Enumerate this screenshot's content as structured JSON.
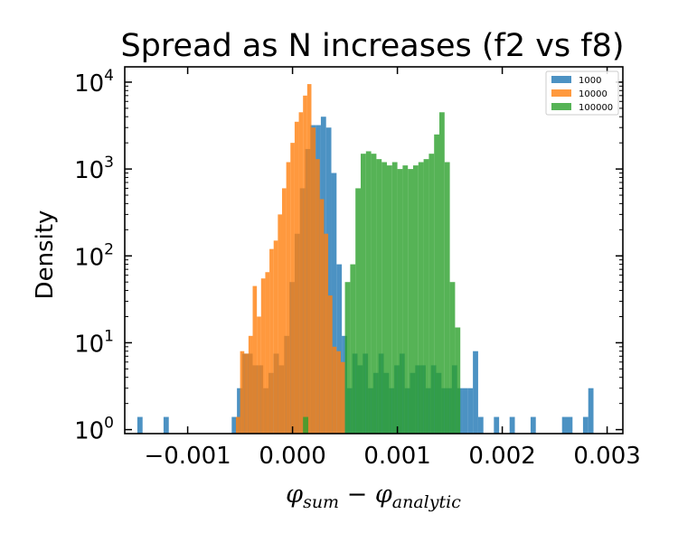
{
  "chart_data": {
    "type": "histogram",
    "title": "Spread as N increases (f2 vs f8)",
    "xlabel": {
      "base1": "φ",
      "sub1": "sum",
      "minus": " − ",
      "base2": "φ",
      "sub2": "analytic"
    },
    "ylabel": "Density",
    "yscale": "log",
    "xlim": [
      -0.0016,
      0.00315
    ],
    "ylim": [
      0.9,
      15000
    ],
    "xticks": [
      {
        "value": -0.001,
        "label": "−0.001"
      },
      {
        "value": 0.0,
        "label": "0.000"
      },
      {
        "value": 0.001,
        "label": "0.001"
      },
      {
        "value": 0.002,
        "label": "0.002"
      },
      {
        "value": 0.003,
        "label": "0.003"
      }
    ],
    "yticks": [
      {
        "value": 1,
        "base": "10",
        "exp": "0"
      },
      {
        "value": 10,
        "base": "10",
        "exp": "1"
      },
      {
        "value": 100,
        "base": "10",
        "exp": "2"
      },
      {
        "value": 1000,
        "base": "10",
        "exp": "3"
      },
      {
        "value": 10000,
        "base": "10",
        "exp": "4"
      }
    ],
    "legend_position": "top-right",
    "series": [
      {
        "name": "1000",
        "color": "#1f77b4",
        "bins": [
          [
            -0.00148,
            -0.00143,
            1.4
          ],
          [
            -0.00123,
            -0.00118,
            1.4
          ],
          [
            -0.00058,
            -0.00053,
            1.4
          ],
          [
            -0.00053,
            -0.00048,
            3.0
          ],
          [
            -0.00048,
            -0.00043,
            7.5
          ],
          [
            -0.00043,
            -0.00038,
            7.5
          ],
          [
            -0.00038,
            -0.00033,
            5.5
          ],
          [
            -0.00033,
            -0.00028,
            5.5
          ],
          [
            -0.00028,
            -0.00023,
            3.0
          ],
          [
            -0.00023,
            -0.00018,
            4.5
          ],
          [
            -0.00018,
            -0.00013,
            7.5
          ],
          [
            -0.00013,
            -8e-05,
            5.5
          ],
          [
            -8e-05,
            -3e-05,
            12
          ],
          [
            -3e-05,
            2e-05,
            50
          ],
          [
            2e-05,
            7e-05,
            180
          ],
          [
            7e-05,
            0.00012,
            600
          ],
          [
            0.00012,
            0.00017,
            1700
          ],
          [
            0.00017,
            0.00022,
            3200
          ],
          [
            0.00022,
            0.00027,
            3200
          ],
          [
            0.00027,
            0.00032,
            4000
          ],
          [
            0.00032,
            0.00037,
            3000
          ],
          [
            0.00037,
            0.00042,
            900
          ],
          [
            0.00042,
            0.00047,
            80
          ],
          [
            0.00047,
            0.00052,
            12
          ],
          [
            0.00052,
            0.00057,
            3.0
          ],
          [
            0.00057,
            0.00062,
            7.5
          ],
          [
            0.00062,
            0.00067,
            5.5
          ],
          [
            0.00067,
            0.00072,
            7.5
          ],
          [
            0.00072,
            0.00077,
            3.0
          ],
          [
            0.00077,
            0.00082,
            4.5
          ],
          [
            0.00082,
            0.00087,
            7.5
          ],
          [
            0.00087,
            0.00092,
            4.5
          ],
          [
            0.00092,
            0.00097,
            3.0
          ],
          [
            0.00097,
            0.00102,
            5.5
          ],
          [
            0.00102,
            0.00107,
            7.5
          ],
          [
            0.00107,
            0.00112,
            3.0
          ],
          [
            0.00112,
            0.00117,
            4.5
          ],
          [
            0.00117,
            0.00122,
            5.5
          ],
          [
            0.00122,
            0.00127,
            5.5
          ],
          [
            0.00127,
            0.00132,
            3.0
          ],
          [
            0.00132,
            0.00137,
            5.5
          ],
          [
            0.00137,
            0.00142,
            4.5
          ],
          [
            0.00142,
            0.00147,
            3.0
          ],
          [
            0.00147,
            0.00152,
            3.0
          ],
          [
            0.00152,
            0.00157,
            5.5
          ],
          [
            0.00157,
            0.00162,
            3.0
          ],
          [
            0.00162,
            0.00167,
            3.0
          ],
          [
            0.00167,
            0.00172,
            3.0
          ],
          [
            0.00172,
            0.00177,
            8.0
          ],
          [
            0.00177,
            0.00182,
            1.4
          ],
          [
            0.00192,
            0.00197,
            1.4
          ],
          [
            0.00207,
            0.00212,
            1.4
          ],
          [
            0.00227,
            0.00232,
            1.4
          ],
          [
            0.00257,
            0.00267,
            1.4
          ],
          [
            0.00277,
            0.00282,
            1.4
          ],
          [
            0.00282,
            0.00287,
            3.0
          ]
        ]
      },
      {
        "name": "10000",
        "color": "#ff7f0e",
        "bins": [
          [
            -0.00054,
            -0.0005,
            1.4
          ],
          [
            -0.0005,
            -0.00046,
            8.0
          ],
          [
            -0.00046,
            -0.00042,
            7.5
          ],
          [
            -0.00042,
            -0.00038,
            12
          ],
          [
            -0.00038,
            -0.00034,
            45
          ],
          [
            -0.00034,
            -0.0003,
            20
          ],
          [
            -0.0003,
            -0.00026,
            55
          ],
          [
            -0.00026,
            -0.00022,
            65
          ],
          [
            -0.00022,
            -0.00018,
            120
          ],
          [
            -0.00018,
            -0.00014,
            150
          ],
          [
            -0.00014,
            -0.0001,
            300
          ],
          [
            -0.0001,
            -6e-05,
            600
          ],
          [
            -6e-05,
            -2e-05,
            1200
          ],
          [
            -2e-05,
            2e-05,
            2000
          ],
          [
            2e-05,
            6e-05,
            3500
          ],
          [
            6e-05,
            0.0001,
            4500
          ],
          [
            0.0001,
            0.00014,
            7000
          ],
          [
            0.00014,
            0.00018,
            9500
          ],
          [
            0.00018,
            0.00022,
            3000
          ],
          [
            0.00022,
            0.00026,
            1300
          ],
          [
            0.00026,
            0.0003,
            450
          ],
          [
            0.0003,
            0.00034,
            180
          ],
          [
            0.00034,
            0.00038,
            35
          ],
          [
            0.00038,
            0.00042,
            9.0
          ],
          [
            0.00042,
            0.00046,
            8.0
          ],
          [
            0.00046,
            0.0005,
            6.0
          ]
        ]
      },
      {
        "name": "100000",
        "color": "#2ca02c",
        "bins": [
          [
            0.0001,
            0.00015,
            1.4
          ],
          [
            0.0005,
            0.00055,
            50
          ],
          [
            0.00055,
            0.0006,
            80
          ],
          [
            0.0006,
            0.00065,
            600
          ],
          [
            0.00065,
            0.0007,
            1500
          ],
          [
            0.0007,
            0.00075,
            1600
          ],
          [
            0.00075,
            0.0008,
            1500
          ],
          [
            0.0008,
            0.00085,
            1300
          ],
          [
            0.00085,
            0.0009,
            1200
          ],
          [
            0.0009,
            0.00095,
            1100
          ],
          [
            0.00095,
            0.001,
            1200
          ],
          [
            0.001,
            0.00105,
            1000
          ],
          [
            0.00105,
            0.0011,
            1100
          ],
          [
            0.0011,
            0.00115,
            1000
          ],
          [
            0.00115,
            0.0012,
            1100
          ],
          [
            0.0012,
            0.00125,
            1200
          ],
          [
            0.00125,
            0.0013,
            1300
          ],
          [
            0.0013,
            0.00135,
            1500
          ],
          [
            0.00135,
            0.0014,
            2500
          ],
          [
            0.0014,
            0.00145,
            4500
          ],
          [
            0.00145,
            0.0015,
            1200
          ],
          [
            0.0015,
            0.00155,
            50
          ],
          [
            0.00155,
            0.0016,
            15
          ]
        ]
      }
    ]
  }
}
